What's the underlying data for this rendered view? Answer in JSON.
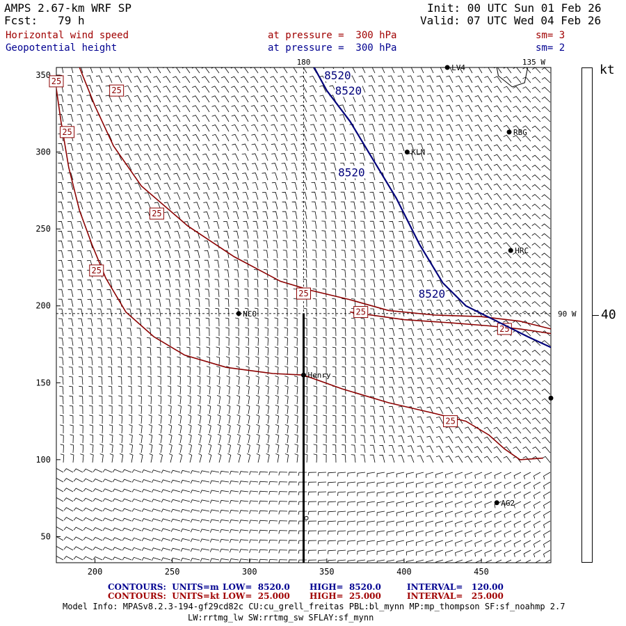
{
  "header": {
    "model": "AMPS 2.67-km WRF SP",
    "fcst": "Fcst:   79 h",
    "init": "Init: 00 UTC Sun 01 Feb 26",
    "valid": "Valid: 07 UTC Wed 04 Feb 26",
    "field1": "Horizontal wind speed",
    "field2": "Geopotential height",
    "pressure1": "at pressure =  300 hPa",
    "pressure2": "at pressure =  300 hPa",
    "sm1": "sm= 3",
    "sm2": "sm= 2"
  },
  "chart_data": {
    "type": "contour",
    "xlim": [
      175,
      495
    ],
    "ylim": [
      33,
      355
    ],
    "x_ticks": [
      200,
      250,
      300,
      350,
      400,
      450
    ],
    "y_ticks": [
      50,
      100,
      150,
      200,
      250,
      300,
      350
    ],
    "lon_labels": {
      "top_180": "180",
      "top_135w": "135 W",
      "right_90w": "90 W"
    },
    "cross_section_x": 335,
    "dashed_x": 335,
    "dashed_y": 195,
    "wind_contours": {
      "label": "25",
      "lines": [
        [
          [
            173,
            355
          ],
          [
            178,
            320
          ],
          [
            183,
            290
          ],
          [
            190,
            262
          ],
          [
            198,
            240
          ],
          [
            207,
            218
          ],
          [
            220,
            196
          ],
          [
            238,
            180
          ],
          [
            258,
            168
          ],
          [
            285,
            160
          ],
          [
            315,
            156
          ],
          [
            335,
            155
          ],
          [
            360,
            146
          ],
          [
            390,
            137
          ],
          [
            420,
            130
          ],
          [
            440,
            125
          ],
          [
            455,
            116
          ],
          [
            465,
            107
          ],
          [
            475,
            100
          ],
          [
            490,
            101
          ]
        ],
        [
          [
            190,
            355
          ],
          [
            200,
            330
          ],
          [
            212,
            304
          ],
          [
            230,
            278
          ],
          [
            260,
            252
          ],
          [
            290,
            232
          ],
          [
            320,
            216
          ],
          [
            340,
            210
          ],
          [
            365,
            204
          ],
          [
            390,
            197
          ],
          [
            420,
            194
          ],
          [
            450,
            193
          ],
          [
            475,
            190
          ],
          [
            495,
            185
          ]
        ],
        [
          [
            365,
            196
          ],
          [
            400,
            191
          ],
          [
            430,
            189
          ],
          [
            455,
            187
          ],
          [
            475,
            185
          ],
          [
            495,
            182
          ]
        ]
      ],
      "labels_at": [
        [
          175,
          346
        ],
        [
          214,
          340
        ],
        [
          182,
          313
        ],
        [
          240,
          260
        ],
        [
          201,
          223
        ],
        [
          335,
          208
        ],
        [
          372,
          196
        ],
        [
          465,
          185
        ],
        [
          430,
          125
        ]
      ]
    },
    "height_contours": {
      "label": "8520",
      "lines": [
        [
          [
            338,
            362
          ],
          [
            350,
            340
          ],
          [
            365,
            320
          ],
          [
            380,
            295
          ],
          [
            395,
            270
          ],
          [
            410,
            240
          ],
          [
            425,
            215
          ],
          [
            440,
            200
          ],
          [
            460,
            190
          ],
          [
            480,
            180
          ],
          [
            495,
            173
          ]
        ]
      ],
      "labels_at": [
        [
          357,
          350
        ],
        [
          364,
          340
        ],
        [
          366,
          287
        ],
        [
          418,
          208
        ]
      ]
    },
    "stations": [
      {
        "name": "LV4",
        "x": 428,
        "y": 355
      },
      {
        "name": "RBG",
        "x": 468,
        "y": 313
      },
      {
        "name": "KLN",
        "x": 402,
        "y": 300
      },
      {
        "name": "HRC",
        "x": 469,
        "y": 236
      },
      {
        "name": "NCO",
        "x": 293,
        "y": 195
      },
      {
        "name": "Henry",
        "x": 335,
        "y": 155
      },
      {
        "name": "AG2",
        "x": 460,
        "y": 72
      },
      {
        "name": "",
        "x": 495,
        "y": 140
      }
    ],
    "colorbar": {
      "unit": "kt",
      "tick": "40"
    }
  },
  "footer": {
    "contours_units": "CONTOURS:  UNITS=m",
    "low_m": "LOW=  8520.0",
    "high_m": "HIGH=  8520.0",
    "interval_m": "INTERVAL=   120.00",
    "contours_units_kt": "CONTOURS:  UNITS=kt",
    "low_kt": "LOW=  25.000",
    "high_kt": "HIGH=  25.000",
    "interval_kt": "INTERVAL=   25.000",
    "model_info": "Model Info: MPASv8.2.3-194-gf29cd82c CU:cu_grell_freitas PBL:bl_mynn MP:mp_thompson SF:sf_noahmp 2.7",
    "model_info2": "LW:rrtmg_lw SW:rrtmg_sw SFLAY:sf_mynn"
  }
}
